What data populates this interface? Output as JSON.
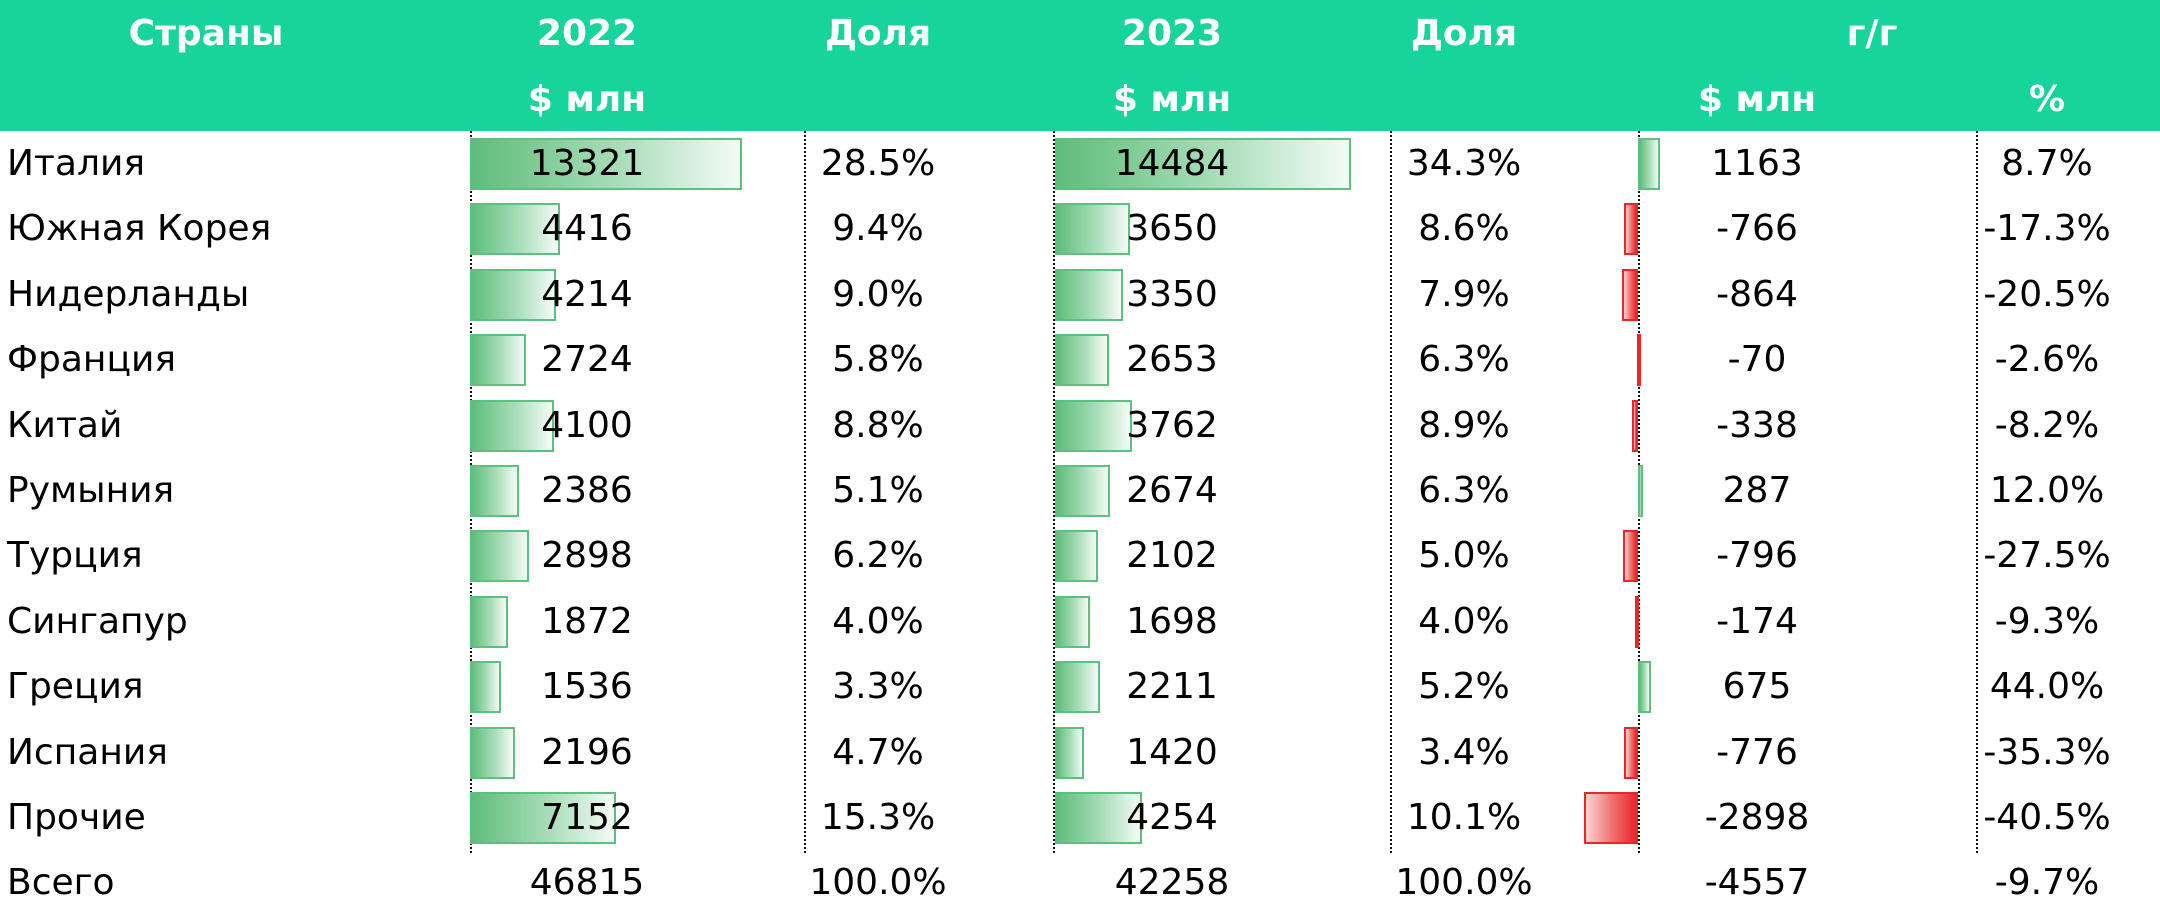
{
  "header": {
    "country": "Страны",
    "year_2022": "2022",
    "share_1": "Доля",
    "year_2023": "2023",
    "share_2": "Доля",
    "yoy": "г/г",
    "unit_2022": "$ млн",
    "unit_2023": "$ млн",
    "unit_yoy": "$ млн",
    "unit_pct": "%"
  },
  "colors": {
    "header_bg": "#16d49c",
    "positive_bar": "#5fbd7b",
    "negative_bar": "#e8262b"
  },
  "chart_data": {
    "type": "table",
    "columns": [
      "Страны",
      "2022 $ млн",
      "Доля",
      "2023 $ млн",
      "Доля",
      "г/г $ млн",
      "г/г %"
    ],
    "rows": [
      {
        "country": "Италия",
        "v2022": 13321,
        "share2022": "28.5%",
        "v2023": 14484,
        "share2023": "34.3%",
        "diff": 1163,
        "diff_label": "1163",
        "pct": "8.7%"
      },
      {
        "country": "Южная Корея",
        "v2022": 4416,
        "share2022": "9.4%",
        "v2023": 3650,
        "share2023": "8.6%",
        "diff": -766,
        "diff_label": "-766",
        "pct": "-17.3%"
      },
      {
        "country": "Нидерланды",
        "v2022": 4214,
        "share2022": "9.0%",
        "v2023": 3350,
        "share2023": "7.9%",
        "diff": -864,
        "diff_label": "-864",
        "pct": "-20.5%"
      },
      {
        "country": "Франция",
        "v2022": 2724,
        "share2022": "5.8%",
        "v2023": 2653,
        "share2023": "6.3%",
        "diff": -70,
        "diff_label": "-70",
        "pct": "-2.6%"
      },
      {
        "country": "Китай",
        "v2022": 4100,
        "share2022": "8.8%",
        "v2023": 3762,
        "share2023": "8.9%",
        "diff": -338,
        "diff_label": "-338",
        "pct": "-8.2%"
      },
      {
        "country": "Румыния",
        "v2022": 2386,
        "share2022": "5.1%",
        "v2023": 2674,
        "share2023": "6.3%",
        "diff": 287,
        "diff_label": "287",
        "pct": "12.0%"
      },
      {
        "country": "Турция",
        "v2022": 2898,
        "share2022": "6.2%",
        "v2023": 2102,
        "share2023": "5.0%",
        "diff": -796,
        "diff_label": "-796",
        "pct": "-27.5%"
      },
      {
        "country": "Сингапур",
        "v2022": 1872,
        "share2022": "4.0%",
        "v2023": 1698,
        "share2023": "4.0%",
        "diff": -174,
        "diff_label": "-174",
        "pct": "-9.3%"
      },
      {
        "country": "Греция",
        "v2022": 1536,
        "share2022": "3.3%",
        "v2023": 2211,
        "share2023": "5.2%",
        "diff": 675,
        "diff_label": "675",
        "pct": "44.0%"
      },
      {
        "country": "Испания",
        "v2022": 2196,
        "share2022": "4.7%",
        "v2023": 1420,
        "share2023": "3.4%",
        "diff": -776,
        "diff_label": "-776",
        "pct": "-35.3%"
      },
      {
        "country": "Прочие",
        "v2022": 7152,
        "share2022": "15.3%",
        "v2023": 4254,
        "share2023": "10.1%",
        "diff": -2898,
        "diff_label": "-2898",
        "pct": "-40.5%"
      }
    ],
    "total": {
      "country": "Всего",
      "v2022": "46815",
      "share2022": "100.0%",
      "v2023": "42258",
      "share2023": "100.0%",
      "diff": "-4557",
      "pct": "-9.7%"
    }
  }
}
